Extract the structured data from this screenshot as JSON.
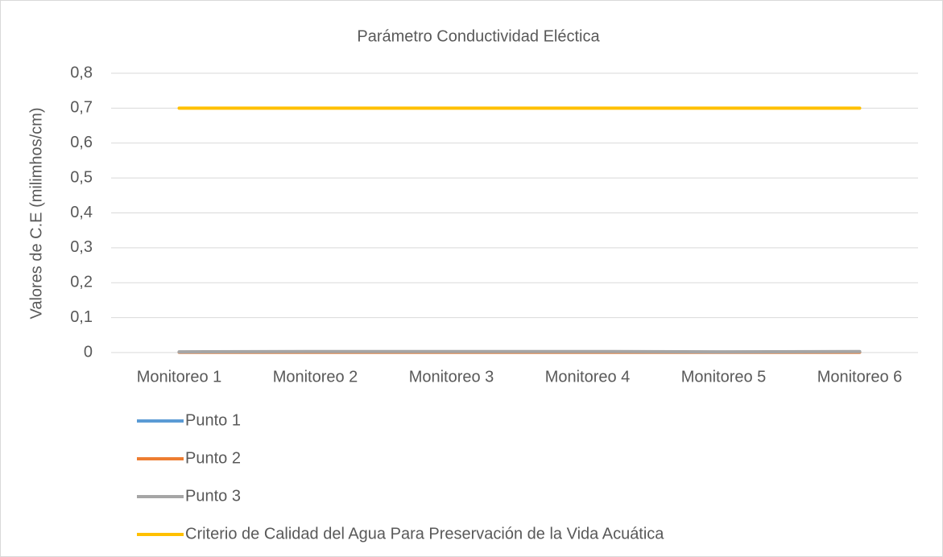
{
  "chart_data": {
    "type": "line",
    "title": "Parámetro Conductividad Eléctica",
    "y_label": "Valores de C.E (milimhos/cm)",
    "categories": [
      "Monitoreo 1",
      "Monitoreo 2",
      "Monitoreo 3",
      "Monitoreo 4",
      "Monitoreo 5",
      "Monitoreo 6"
    ],
    "series": [
      {
        "name": "Punto 1",
        "color": "#5b9bd5",
        "values": [
          0.001,
          0.001,
          0.001,
          0.001,
          0.001,
          0.001
        ]
      },
      {
        "name": "Punto 2",
        "color": "#ed7d31",
        "values": [
          0.001,
          0.001,
          0.001,
          0.001,
          0.001,
          0.001
        ]
      },
      {
        "name": "Punto 3",
        "color": "#a5a5a5",
        "values": [
          0.002,
          0.003,
          0.003,
          0.003,
          0.002,
          0.003
        ]
      },
      {
        "name": "Criterio de Calidad del Agua Para Preservación de la Vida Acuática",
        "color": "#ffc000",
        "values": [
          0.7,
          0.7,
          0.7,
          0.7,
          0.7,
          0.7
        ]
      }
    ],
    "ylim": [
      0,
      0.8
    ],
    "yticks": [
      0,
      {
        "value": 0.1,
        "label": "0,1"
      },
      {
        "value": 0.2,
        "label": "0,2"
      },
      {
        "value": 0.3,
        "label": "0,3"
      },
      {
        "value": 0.4,
        "label": "0,4"
      },
      {
        "value": 0.5,
        "label": "0,5"
      },
      {
        "value": 0.6,
        "label": "0,6"
      },
      {
        "value": 0.7,
        "label": "0,7"
      },
      {
        "value": 0.8,
        "label": "0,8"
      }
    ],
    "grid": true,
    "legend": "bottom"
  }
}
